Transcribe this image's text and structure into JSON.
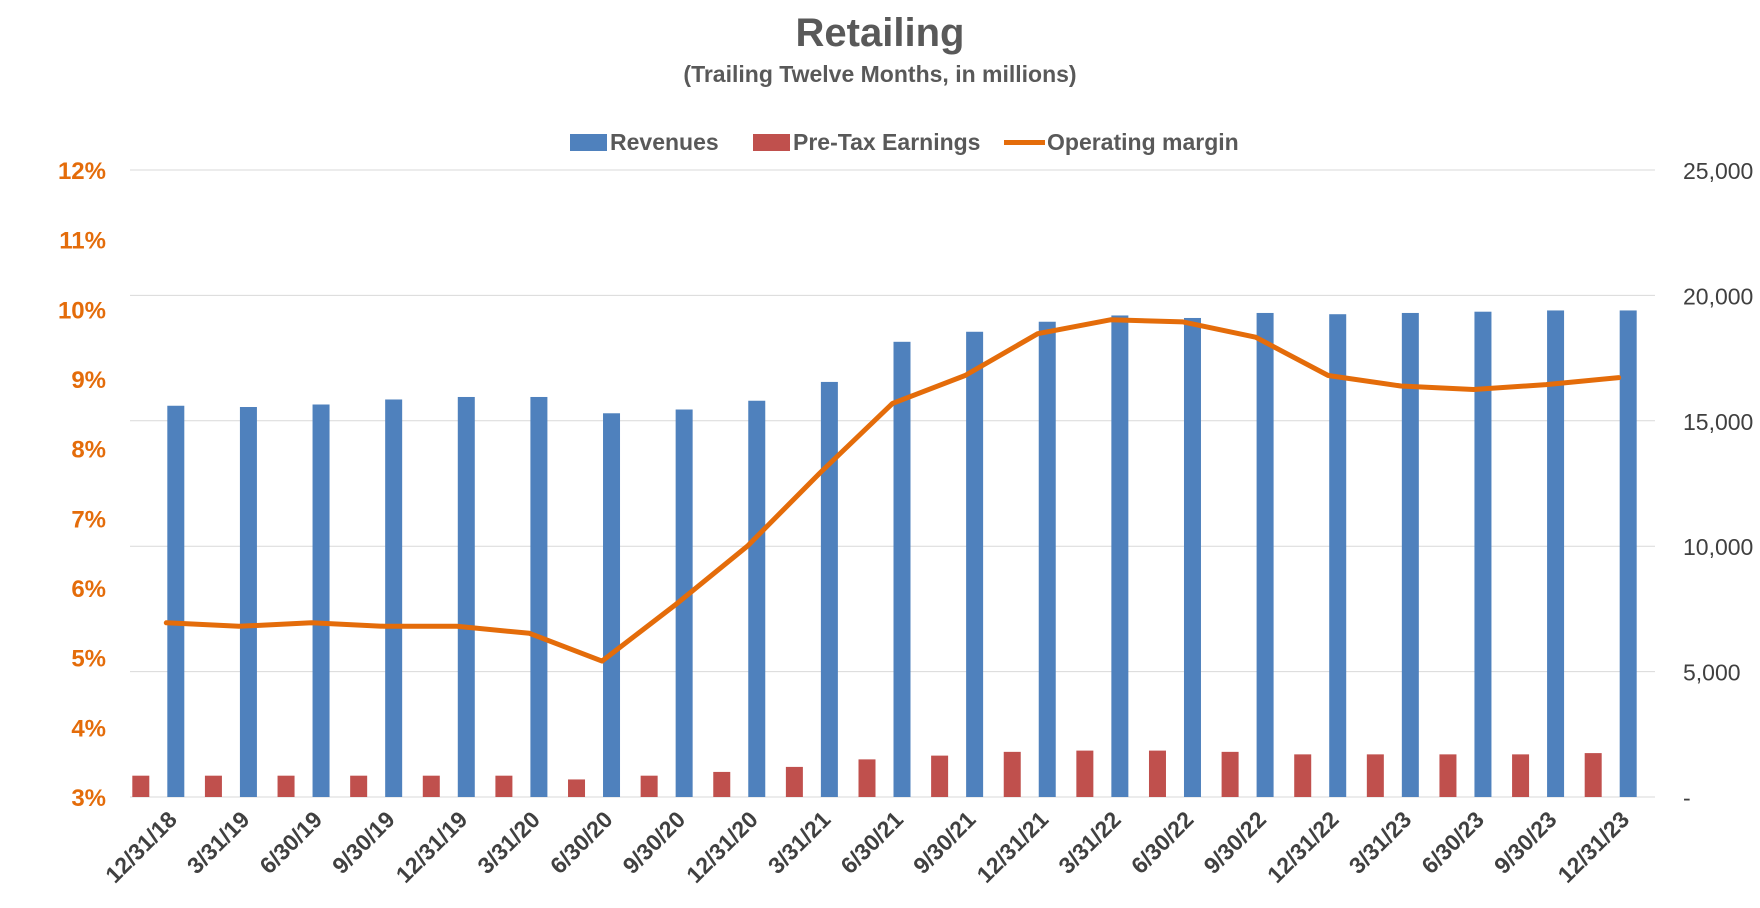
{
  "colors": {
    "revenues": "#4F81BD",
    "pretax": "#C0504D",
    "margin": "#E46C0A"
  },
  "chart_data": {
    "type": "bar",
    "title": "Retailing",
    "subtitle": "(Trailing Twelve Months, in millions)",
    "categories": [
      "12/31/18",
      "3/31/19",
      "6/30/19",
      "9/30/19",
      "12/31/19",
      "3/31/20",
      "6/30/20",
      "9/30/20",
      "12/31/20",
      "3/31/21",
      "6/30/21",
      "9/30/21",
      "12/31/21",
      "3/31/22",
      "6/30/22",
      "9/30/22",
      "12/31/22",
      "3/31/23",
      "6/30/23",
      "9/30/23",
      "12/31/23"
    ],
    "series": [
      {
        "name": "Revenues",
        "type": "bar",
        "axis": "right",
        "color": "#4F81BD",
        "values": [
          15600,
          15550,
          15650,
          15850,
          15950,
          15950,
          15300,
          15450,
          15800,
          16550,
          18150,
          18550,
          18950,
          19200,
          19100,
          19300,
          19250,
          19300,
          19350,
          19400,
          19400
        ]
      },
      {
        "name": "Pre-Tax Earnings",
        "type": "bar",
        "axis": "right",
        "color": "#C0504D",
        "values": [
          850,
          850,
          850,
          850,
          850,
          850,
          700,
          850,
          1000,
          1200,
          1500,
          1650,
          1800,
          1850,
          1850,
          1800,
          1700,
          1700,
          1700,
          1700,
          1750
        ]
      },
      {
        "name": "Operating margin",
        "type": "line",
        "axis": "left",
        "color": "#E46C0A",
        "values": [
          5.5,
          5.45,
          5.5,
          5.45,
          5.45,
          5.35,
          4.95,
          5.75,
          6.6,
          7.65,
          8.65,
          9.05,
          9.65,
          9.85,
          9.82,
          9.6,
          9.05,
          8.9,
          8.85,
          8.92,
          9.02
        ]
      }
    ],
    "left_axis": {
      "ylim": [
        3,
        12
      ],
      "ticks": [
        3,
        4,
        5,
        6,
        7,
        8,
        9,
        10,
        11,
        12
      ],
      "tick_labels": [
        "3%",
        "4%",
        "5%",
        "6%",
        "7%",
        "8%",
        "9%",
        "10%",
        "11%",
        "12%"
      ]
    },
    "right_axis": {
      "ylim": [
        0,
        25000
      ],
      "ticks": [
        0,
        5000,
        10000,
        15000,
        20000,
        25000
      ],
      "tick_labels": [
        "-",
        "5,000",
        "10,000",
        "15,000",
        "20,000",
        "25,000"
      ]
    },
    "grid": true,
    "legend": "top-center"
  }
}
